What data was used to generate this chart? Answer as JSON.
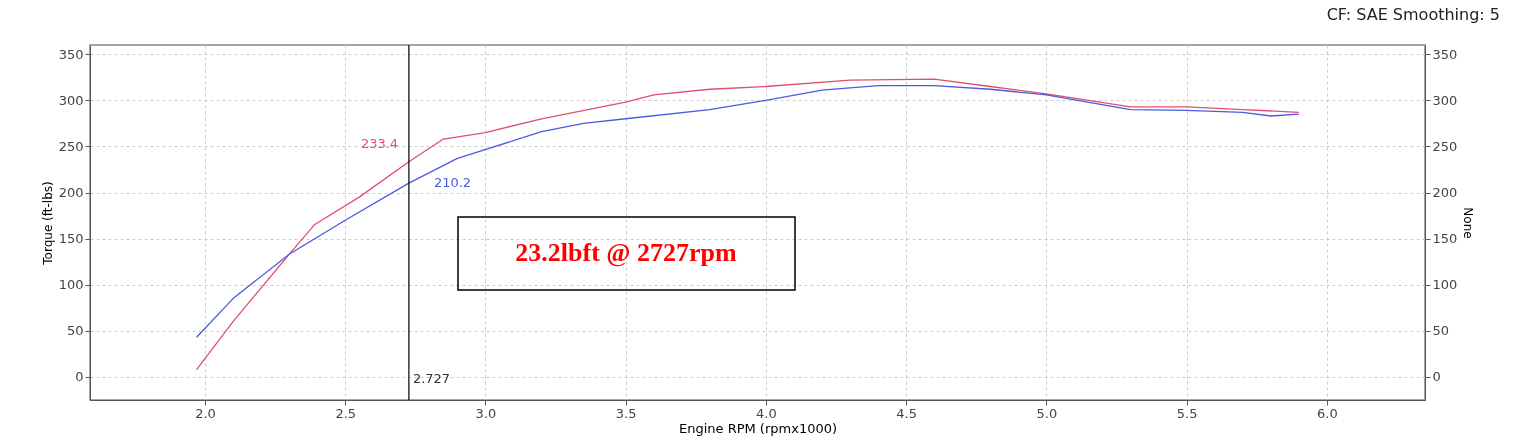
{
  "chart_data": {
    "type": "line",
    "xlabel": "Engine RPM (rpmx1000)",
    "ylabel": "Torque (ft-lbs)",
    "y2label": "None",
    "xlim": [
      1.59,
      6.35
    ],
    "xticks": [
      {
        "value": 2.0,
        "label": "2.0"
      },
      {
        "value": 2.5,
        "label": "2.5"
      },
      {
        "value": 3.0,
        "label": "3.0"
      },
      {
        "value": 3.5,
        "label": "3.5"
      },
      {
        "value": 4.0,
        "label": "4.0"
      },
      {
        "value": 4.5,
        "label": "4.5"
      },
      {
        "value": 5.0,
        "label": "5.0"
      },
      {
        "value": 5.5,
        "label": "5.5"
      },
      {
        "value": 6.0,
        "label": "6.0"
      }
    ],
    "ylim": [
      -25,
      360
    ],
    "yticks": [
      0,
      50,
      100,
      150,
      200,
      250,
      300,
      350
    ],
    "y2lim": [
      -25,
      360
    ],
    "y2ticks": [
      0,
      50,
      100,
      150,
      200,
      250,
      300,
      350
    ],
    "grid": true,
    "line_style": "solid",
    "marker": "none",
    "series": [
      {
        "color": "#e0506a",
        "x": [
          1.97,
          2.1,
          2.3,
          2.39,
          2.55,
          2.727,
          2.85,
          3.0,
          3.2,
          3.5,
          3.6,
          3.8,
          4.0,
          4.3,
          4.6,
          4.8,
          5.0,
          5.3,
          5.5,
          5.7,
          5.9
        ],
        "values": [
          8,
          60,
          133,
          165,
          195,
          233.4,
          258,
          265,
          280,
          298,
          306,
          312,
          315,
          322,
          323,
          315,
          307,
          293,
          293,
          290,
          287
        ]
      },
      {
        "color": "#4a5be0",
        "x": [
          1.97,
          2.1,
          2.3,
          2.5,
          2.727,
          2.9,
          3.2,
          3.35,
          3.5,
          3.8,
          4.0,
          4.2,
          4.4,
          4.6,
          4.8,
          5.0,
          5.3,
          5.5,
          5.7,
          5.8,
          5.9
        ],
        "values": [
          43,
          85,
          133,
          170,
          210.2,
          237,
          266,
          275,
          280,
          290,
          300,
          311,
          316,
          316,
          312,
          306,
          290,
          289,
          287,
          283,
          285
        ]
      }
    ],
    "ref_lines": [
      {
        "axis": "x",
        "value": 2.727,
        "label": "2.727",
        "color": "#000000"
      }
    ],
    "annotations": [
      {
        "text": "233.4",
        "x": 2.727,
        "y": 233.4
      },
      {
        "text": "210.2",
        "x": 2.727,
        "y": 210.2
      },
      "23.2lbft @ 2727rpm",
      "CF: SAE Smoothing: 5"
    ]
  }
}
